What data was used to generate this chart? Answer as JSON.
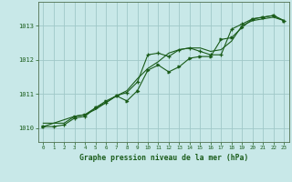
{
  "xlabel": "Graphe pression niveau de la mer (hPa)",
  "xlim": [
    -0.5,
    23.5
  ],
  "ylim": [
    1009.6,
    1013.7
  ],
  "yticks": [
    1010,
    1011,
    1012,
    1013
  ],
  "xticks": [
    0,
    1,
    2,
    3,
    4,
    5,
    6,
    7,
    8,
    9,
    10,
    11,
    12,
    13,
    14,
    15,
    16,
    17,
    18,
    19,
    20,
    21,
    22,
    23
  ],
  "bg_color": "#c8e8e8",
  "grid_color": "#a0c8c8",
  "line_color": "#1a5c1a",
  "line1_x": [
    0,
    1,
    2,
    3,
    4,
    5,
    6,
    7,
    8,
    9,
    10,
    11,
    12,
    13,
    14,
    15,
    16,
    17,
    18,
    19,
    20,
    21,
    22,
    23
  ],
  "line1_y": [
    1010.15,
    1010.15,
    1010.15,
    1010.35,
    1010.4,
    1010.55,
    1010.75,
    1010.95,
    1011.1,
    1011.45,
    1011.75,
    1011.95,
    1012.2,
    1012.3,
    1012.35,
    1012.35,
    1012.25,
    1012.3,
    1012.55,
    1013.0,
    1013.15,
    1013.2,
    1013.25,
    1013.15
  ],
  "line2_x": [
    0,
    1,
    2,
    3,
    4,
    5,
    6,
    7,
    8,
    9,
    10,
    11,
    12,
    13,
    14,
    15,
    16,
    17,
    18,
    19,
    20,
    21,
    22,
    23
  ],
  "line2_y": [
    1010.05,
    1010.05,
    1010.1,
    1010.3,
    1010.35,
    1010.6,
    1010.75,
    1010.95,
    1011.05,
    1011.35,
    1012.15,
    1012.2,
    1012.1,
    1012.3,
    1012.35,
    1012.25,
    1012.15,
    1012.15,
    1012.9,
    1013.05,
    1013.2,
    1013.25,
    1013.3,
    1013.15
  ],
  "line3_x": [
    0,
    3,
    4,
    5,
    6,
    7,
    8,
    9,
    10,
    11,
    12,
    13,
    14,
    15,
    16,
    17,
    18,
    19,
    20,
    21,
    22,
    23
  ],
  "line3_y": [
    1010.05,
    1010.35,
    1010.4,
    1010.6,
    1010.8,
    1010.95,
    1010.8,
    1011.1,
    1011.7,
    1011.85,
    1011.65,
    1011.8,
    1012.05,
    1012.1,
    1012.1,
    1012.6,
    1012.65,
    1012.95,
    1013.2,
    1013.25,
    1013.3,
    1013.15
  ]
}
